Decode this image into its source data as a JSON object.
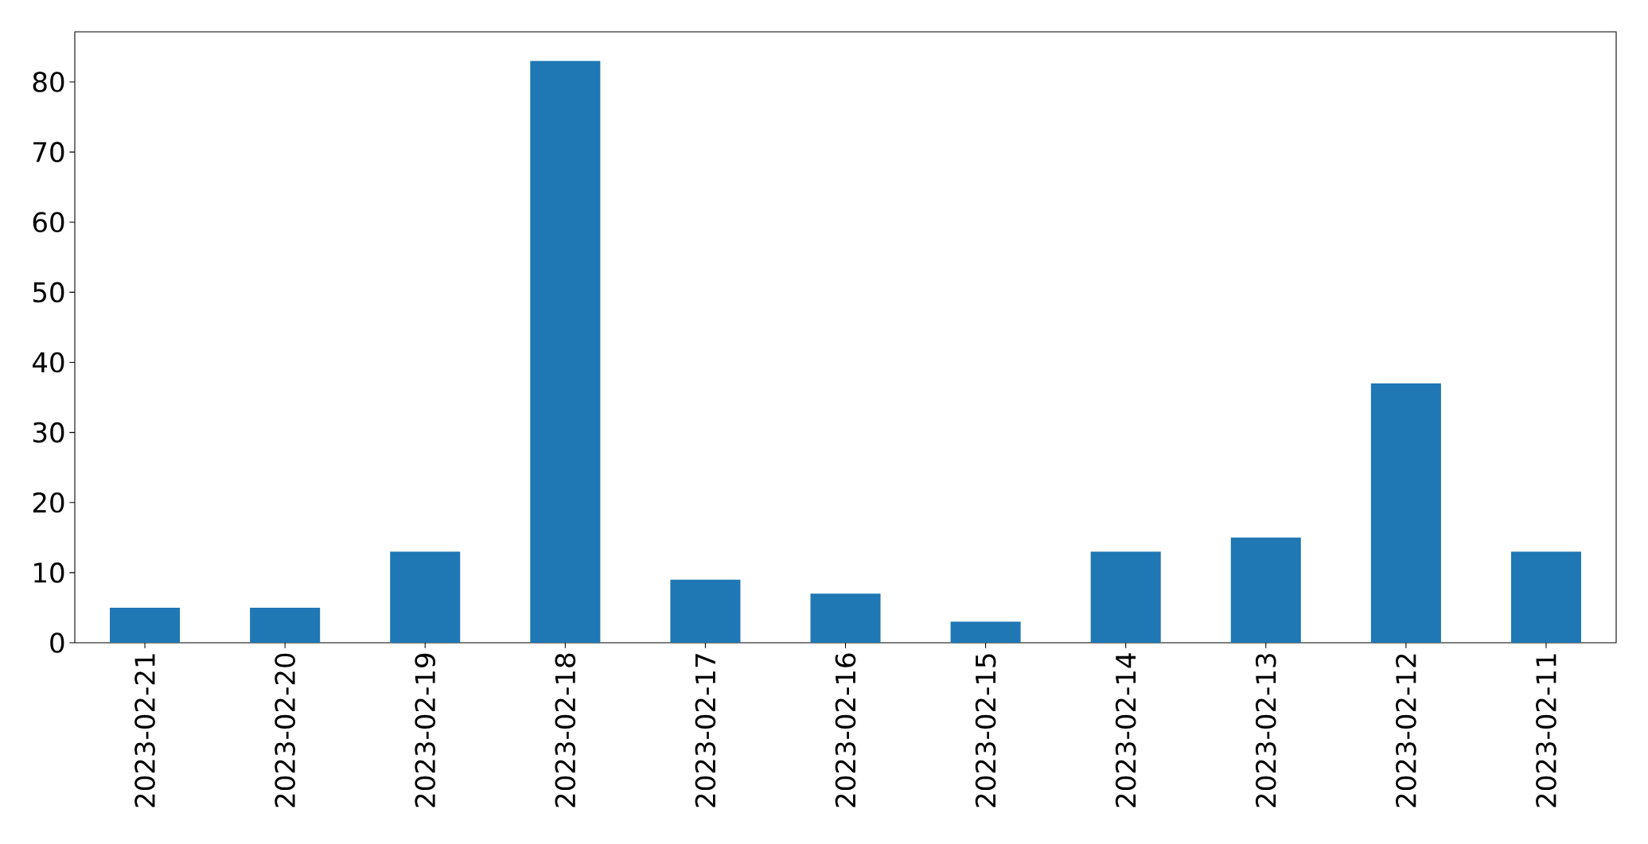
{
  "chart_data": {
    "type": "bar",
    "categories": [
      "2023-02-21",
      "2023-02-20",
      "2023-02-19",
      "2023-02-18",
      "2023-02-17",
      "2023-02-16",
      "2023-02-15",
      "2023-02-14",
      "2023-02-13",
      "2023-02-12",
      "2023-02-11"
    ],
    "values": [
      5,
      5,
      13,
      83,
      9,
      7,
      3,
      13,
      15,
      37,
      13
    ],
    "color": "#1f77b4",
    "ylim": [
      0,
      87.15
    ],
    "yticks": [
      0,
      10,
      20,
      30,
      40,
      50,
      60,
      70,
      80
    ]
  }
}
